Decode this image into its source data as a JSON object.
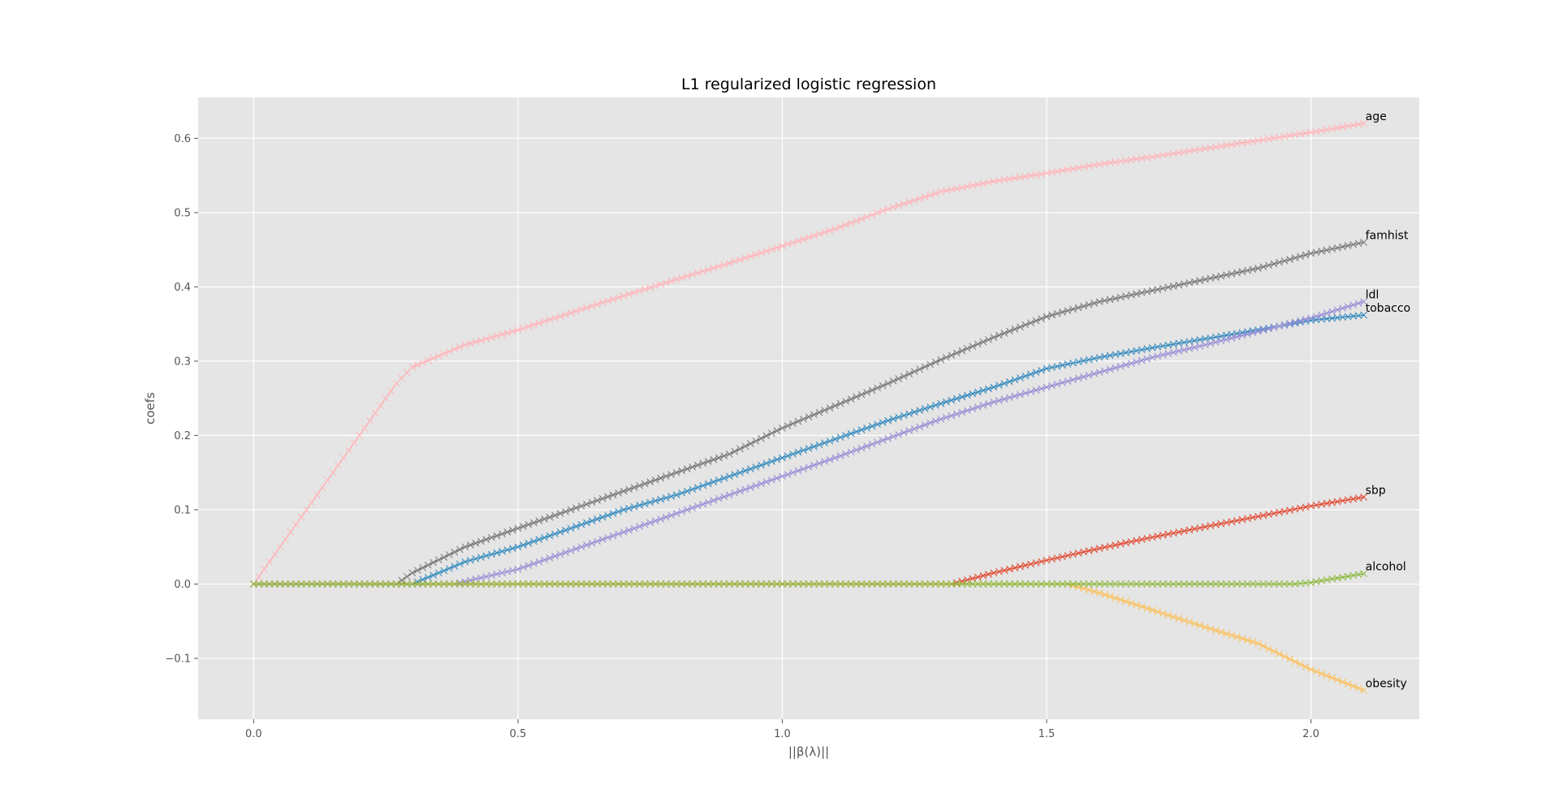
{
  "chart_data": {
    "type": "line",
    "title": "L1 regularized logistic regression",
    "xlabel": "||β(λ)||",
    "ylabel": "coefs",
    "xlim": [
      -0.105,
      2.205
    ],
    "ylim": [
      -0.182,
      0.655
    ],
    "xticks": [
      0.0,
      0.5,
      1.0,
      1.5,
      2.0
    ],
    "xtick_labels": [
      "0.0",
      "0.5",
      "1.0",
      "1.5",
      "2.0"
    ],
    "yticks": [
      -0.1,
      0.0,
      0.1,
      0.2,
      0.3,
      0.4,
      0.5,
      0.6
    ],
    "ytick_labels": [
      "−0.1",
      "0.0",
      "0.1",
      "0.2",
      "0.3",
      "0.4",
      "0.5",
      "0.6"
    ],
    "grid": true,
    "marker": "x",
    "style": {
      "background": "#e5e5e5",
      "grid_color": "#ffffff"
    },
    "series": [
      {
        "name": "age",
        "color": "#ffb5b8",
        "label": "age",
        "points": [
          [
            0.0,
            0.0
          ],
          [
            0.1,
            0.1
          ],
          [
            0.2,
            0.2
          ],
          [
            0.27,
            0.27
          ],
          [
            0.3,
            0.292
          ],
          [
            0.4,
            0.322
          ],
          [
            0.5,
            0.342
          ],
          [
            0.6,
            0.365
          ],
          [
            0.7,
            0.388
          ],
          [
            0.8,
            0.41
          ],
          [
            0.9,
            0.432
          ],
          [
            1.0,
            0.455
          ],
          [
            1.1,
            0.478
          ],
          [
            1.2,
            0.505
          ],
          [
            1.3,
            0.528
          ],
          [
            1.4,
            0.542
          ],
          [
            1.5,
            0.553
          ],
          [
            1.6,
            0.565
          ],
          [
            1.7,
            0.575
          ],
          [
            1.8,
            0.586
          ],
          [
            1.9,
            0.597
          ],
          [
            2.0,
            0.608
          ],
          [
            2.1,
            0.62
          ]
        ]
      },
      {
        "name": "famhist",
        "color": "#777777",
        "label": "famhist",
        "points": [
          [
            0.0,
            0.0
          ],
          [
            0.27,
            0.0
          ],
          [
            0.3,
            0.015
          ],
          [
            0.4,
            0.05
          ],
          [
            0.5,
            0.075
          ],
          [
            0.6,
            0.1
          ],
          [
            0.7,
            0.125
          ],
          [
            0.8,
            0.15
          ],
          [
            0.9,
            0.175
          ],
          [
            1.0,
            0.21
          ],
          [
            1.1,
            0.24
          ],
          [
            1.2,
            0.27
          ],
          [
            1.3,
            0.302
          ],
          [
            1.4,
            0.332
          ],
          [
            1.5,
            0.36
          ],
          [
            1.6,
            0.38
          ],
          [
            1.7,
            0.395
          ],
          [
            1.8,
            0.41
          ],
          [
            1.9,
            0.425
          ],
          [
            2.0,
            0.445
          ],
          [
            2.1,
            0.46
          ]
        ]
      },
      {
        "name": "tobacco",
        "color": "#348abd",
        "label": "tobacco",
        "points": [
          [
            0.0,
            0.0
          ],
          [
            0.3,
            0.0
          ],
          [
            0.4,
            0.03
          ],
          [
            0.5,
            0.05
          ],
          [
            0.6,
            0.075
          ],
          [
            0.7,
            0.1
          ],
          [
            0.8,
            0.12
          ],
          [
            0.9,
            0.145
          ],
          [
            1.0,
            0.17
          ],
          [
            1.1,
            0.195
          ],
          [
            1.2,
            0.22
          ],
          [
            1.3,
            0.243
          ],
          [
            1.4,
            0.265
          ],
          [
            1.5,
            0.29
          ],
          [
            1.6,
            0.305
          ],
          [
            1.7,
            0.318
          ],
          [
            1.8,
            0.33
          ],
          [
            1.9,
            0.342
          ],
          [
            2.0,
            0.355
          ],
          [
            2.1,
            0.362
          ]
        ]
      },
      {
        "name": "ldl",
        "color": "#988ed5",
        "label": "ldl",
        "points": [
          [
            0.0,
            0.0
          ],
          [
            0.38,
            0.0
          ],
          [
            0.5,
            0.02
          ],
          [
            0.6,
            0.045
          ],
          [
            0.7,
            0.07
          ],
          [
            0.8,
            0.095
          ],
          [
            0.9,
            0.12
          ],
          [
            1.0,
            0.145
          ],
          [
            1.1,
            0.17
          ],
          [
            1.2,
            0.196
          ],
          [
            1.3,
            0.222
          ],
          [
            1.4,
            0.245
          ],
          [
            1.5,
            0.265
          ],
          [
            1.6,
            0.285
          ],
          [
            1.7,
            0.305
          ],
          [
            1.8,
            0.322
          ],
          [
            1.9,
            0.34
          ],
          [
            2.0,
            0.358
          ],
          [
            2.1,
            0.38
          ]
        ]
      },
      {
        "name": "sbp",
        "color": "#e24a33",
        "label": "sbp",
        "points": [
          [
            0.0,
            0.0
          ],
          [
            1.32,
            0.0
          ],
          [
            1.4,
            0.015
          ],
          [
            1.5,
            0.032
          ],
          [
            1.6,
            0.048
          ],
          [
            1.7,
            0.063
          ],
          [
            1.8,
            0.077
          ],
          [
            1.9,
            0.091
          ],
          [
            2.0,
            0.105
          ],
          [
            2.1,
            0.117
          ]
        ]
      },
      {
        "name": "obesity",
        "color": "#fbc15e",
        "label": "obesity",
        "points": [
          [
            0.0,
            0.0
          ],
          [
            1.54,
            0.0
          ],
          [
            1.6,
            -0.012
          ],
          [
            1.7,
            -0.035
          ],
          [
            1.8,
            -0.058
          ],
          [
            1.9,
            -0.08
          ],
          [
            2.0,
            -0.115
          ],
          [
            2.1,
            -0.143
          ]
        ]
      },
      {
        "name": "alcohol",
        "color": "#8eba42",
        "label": "alcohol",
        "points": [
          [
            0.0,
            0.0
          ],
          [
            1.97,
            0.0
          ],
          [
            2.0,
            0.002
          ],
          [
            2.05,
            0.008
          ],
          [
            2.1,
            0.014
          ]
        ]
      }
    ]
  }
}
